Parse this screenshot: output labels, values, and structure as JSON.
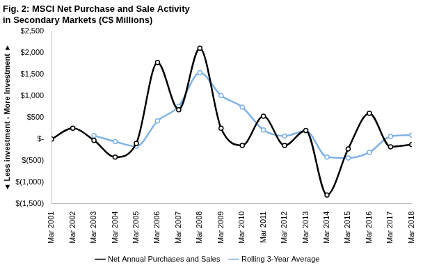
{
  "chart_data": {
    "type": "line",
    "title": [
      "Fig. 2: MSCI Net Purchase and Sale Activity",
      "in Secondary Markets (C$ Millions)"
    ],
    "y_label": "◄ Less investment - More Investment ►",
    "categories": [
      "Mar 2001",
      "Mar 2002",
      "Mar 2003",
      "Mar 2004",
      "Mar 2005",
      "Mar 2006",
      "Mar 2007",
      "Mar 2008",
      "Mar 2009",
      "Mar 2010",
      "Mar 2011",
      "Mar 2012",
      "Mar 2013",
      "Mar 2014",
      "Mar 2015",
      "Mar 2016",
      "Mar 2017",
      "Mar 2018"
    ],
    "series": [
      {
        "name": "Net Annual Purchases and Sales",
        "color": "#000000",
        "marker": "circle",
        "line_style": "solid",
        "values": [
          0,
          250,
          -30,
          -420,
          -100,
          1780,
          680,
          2110,
          250,
          -150,
          530,
          -150,
          200,
          -1300,
          -230,
          600,
          -180,
          -130
        ]
      },
      {
        "name": "Rolling 3-Year Average",
        "color": "#7fb2e5",
        "marker": "circle",
        "line_style": "solid",
        "values": [
          null,
          null,
          80,
          -60,
          -170,
          420,
          760,
          1540,
          1010,
          740,
          210,
          70,
          190,
          -420,
          -440,
          -310,
          60,
          90
        ]
      }
    ],
    "ylim": [
      -1500,
      2500
    ],
    "yticks": [
      {
        "value": -1500,
        "label": "$(1,500)"
      },
      {
        "value": -1000,
        "label": "$(1,000)"
      },
      {
        "value": -500,
        "label": "$(500)"
      },
      {
        "value": 0,
        "label": "$-"
      },
      {
        "value": 500,
        "label": "$500"
      },
      {
        "value": 1000,
        "label": "$1,000"
      },
      {
        "value": 1500,
        "label": "$1,500"
      },
      {
        "value": 2000,
        "label": "$2,000"
      },
      {
        "value": 2500,
        "label": "$2,500"
      }
    ],
    "grid": false,
    "legend": "bottom"
  }
}
